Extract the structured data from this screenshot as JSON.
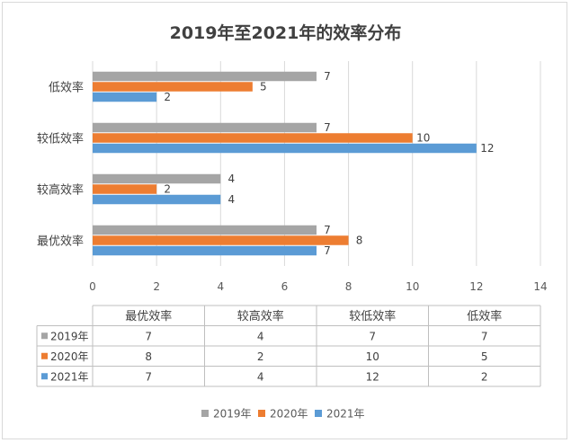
{
  "chart_data": {
    "type": "bar",
    "orientation": "horizontal",
    "title": "2019年至2021年的效率分布",
    "categories": [
      "最优效率",
      "较高效率",
      "较低效率",
      "低效率"
    ],
    "series": [
      {
        "name": "2019年",
        "values": [
          7,
          4,
          7,
          7
        ],
        "color": "#a5a5a5"
      },
      {
        "name": "2020年",
        "values": [
          8,
          2,
          10,
          5
        ],
        "color": "#ed7d31"
      },
      {
        "name": "2021年",
        "values": [
          7,
          4,
          12,
          2
        ],
        "color": "#5b9bd5"
      }
    ],
    "xlim": [
      0,
      14
    ],
    "xticks": [
      "0",
      "2",
      "4",
      "6",
      "8",
      "10",
      "12",
      "14"
    ],
    "grid": true,
    "legend_position": "bottom",
    "data_table": true,
    "data_labels": true
  }
}
